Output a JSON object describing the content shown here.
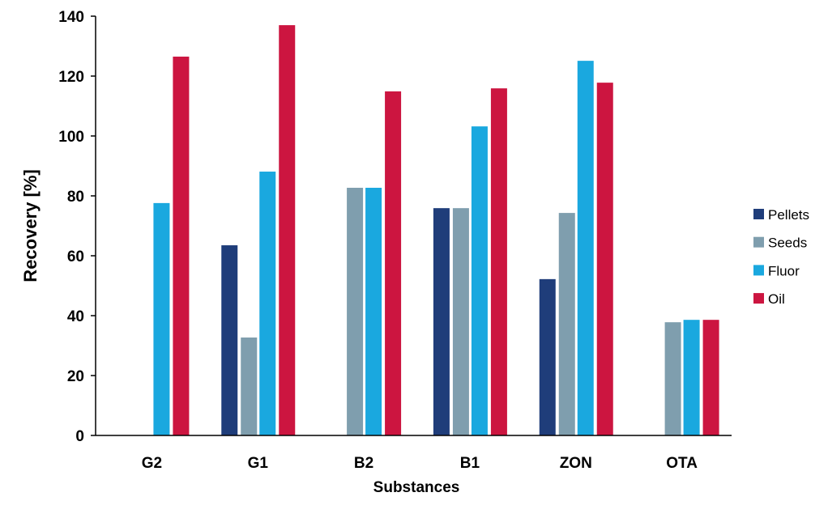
{
  "chart_data": {
    "type": "bar",
    "title": "",
    "xlabel": "Substances",
    "ylabel": "Recovery [%]",
    "ylim": [
      0,
      140
    ],
    "yticks": [
      0,
      20,
      40,
      60,
      80,
      100,
      120,
      140
    ],
    "grid": false,
    "legend_position": "right",
    "categories": [
      "G2",
      "G1",
      "B2",
      "B1",
      "ZON",
      "OTA"
    ],
    "series": [
      {
        "name": "Pellets",
        "color": "#1f3d7a",
        "values": [
          null,
          63.5,
          null,
          75.9,
          52.2,
          null
        ]
      },
      {
        "name": "Seeds",
        "color": "#7f9eae",
        "values": [
          null,
          32.7,
          82.7,
          75.9,
          74.3,
          37.8
        ]
      },
      {
        "name": "Fluor",
        "color": "#1aa8df",
        "values": [
          77.6,
          88.1,
          82.7,
          103.2,
          125.1,
          38.6
        ]
      },
      {
        "name": "Oil",
        "color": "#cc1540",
        "values": [
          126.5,
          137.0,
          114.9,
          115.9,
          117.8,
          38.6
        ]
      }
    ]
  }
}
